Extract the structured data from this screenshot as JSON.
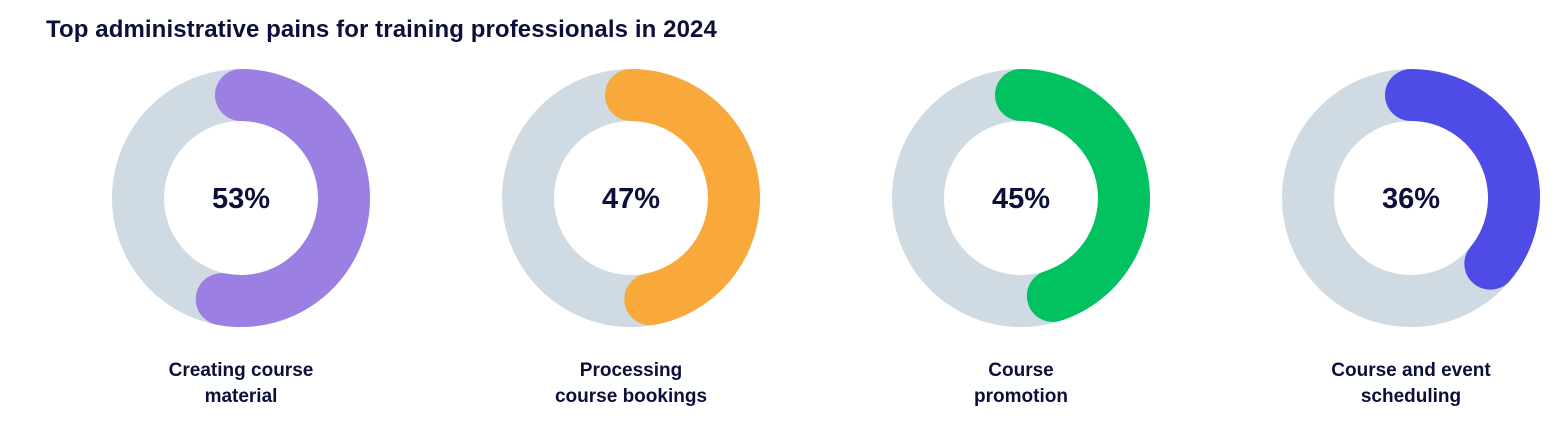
{
  "title": "Top administrative pains for training professionals in 2024",
  "chart_data": {
    "type": "donut",
    "title": "Top administrative pains for training professionals in 2024",
    "unit": "%",
    "track_color": "#cfdae2",
    "items": [
      {
        "label_lines": [
          "Creating course",
          "material"
        ],
        "value": 53,
        "display": "53%",
        "color": "#9b7fe3"
      },
      {
        "label_lines": [
          "Processing",
          "course bookings"
        ],
        "value": 47,
        "display": "47%",
        "color": "#f9a93c"
      },
      {
        "label_lines": [
          "Course",
          "promotion"
        ],
        "value": 45,
        "display": "45%",
        "color": "#02c160"
      },
      {
        "label_lines": [
          "Course and event",
          "scheduling"
        ],
        "value": 36,
        "display": "36%",
        "color": "#4f4be6"
      }
    ]
  }
}
